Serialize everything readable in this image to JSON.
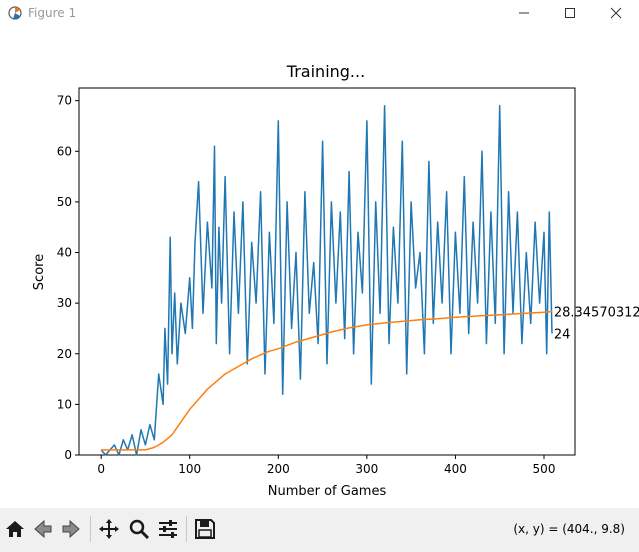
{
  "window": {
    "title": "Figure 1"
  },
  "toolbar": {
    "coords_text": "(x, y) = (404., 9.8)"
  },
  "chart_data": {
    "type": "line",
    "title": "Training...",
    "xlabel": "Number of Games",
    "ylabel": "Score",
    "xlim": [
      -25,
      535
    ],
    "ylim": [
      0,
      72.5
    ],
    "xticks": [
      0,
      100,
      200,
      300,
      400,
      500
    ],
    "yticks": [
      0,
      10,
      20,
      30,
      40,
      50,
      60,
      70
    ],
    "grid": false,
    "annotations": [
      {
        "text": "28.34570312",
        "x": 510,
        "y": 28.35
      },
      {
        "text": "24",
        "x": 510,
        "y": 24
      }
    ],
    "series": [
      {
        "color": "#1f77b4",
        "x": [
          0,
          5,
          10,
          15,
          20,
          25,
          30,
          35,
          40,
          45,
          50,
          55,
          60,
          65,
          70,
          72,
          75,
          78,
          80,
          83,
          86,
          90,
          95,
          100,
          103,
          106,
          110,
          115,
          120,
          125,
          128,
          130,
          133,
          136,
          140,
          145,
          150,
          155,
          160,
          165,
          170,
          175,
          180,
          185,
          190,
          195,
          200,
          205,
          210,
          215,
          220,
          225,
          230,
          235,
          240,
          245,
          250,
          255,
          260,
          265,
          270,
          275,
          280,
          285,
          290,
          295,
          300,
          305,
          310,
          315,
          320,
          325,
          330,
          335,
          340,
          345,
          350,
          355,
          360,
          365,
          370,
          375,
          380,
          385,
          390,
          395,
          400,
          405,
          410,
          415,
          420,
          425,
          430,
          435,
          440,
          445,
          450,
          455,
          460,
          465,
          470,
          475,
          480,
          485,
          490,
          495,
          500,
          503,
          506,
          509
        ],
        "y": [
          1,
          0,
          1,
          2,
          0,
          3,
          1,
          4,
          0,
          5,
          2,
          6,
          3,
          16,
          10,
          25,
          14,
          43,
          20,
          32,
          18,
          30,
          24,
          35,
          25,
          42,
          54,
          28,
          46,
          33,
          61,
          22,
          45,
          30,
          55,
          20,
          48,
          28,
          50,
          18,
          42,
          30,
          52,
          16,
          44,
          26,
          66,
          12,
          50,
          25,
          40,
          15,
          52,
          28,
          38,
          22,
          62,
          18,
          50,
          30,
          48,
          23,
          56,
          20,
          44,
          32,
          66,
          14,
          50,
          28,
          69,
          22,
          45,
          30,
          62,
          16,
          50,
          33,
          40,
          20,
          58,
          26,
          46,
          30,
          52,
          20,
          44,
          28,
          55,
          24,
          46,
          30,
          60,
          22,
          48,
          26,
          69,
          20,
          52,
          28,
          48,
          22,
          40,
          26,
          46,
          30,
          44,
          20,
          48,
          24
        ]
      },
      {
        "color": "#ff7f0e",
        "x": [
          0,
          30,
          50,
          60,
          70,
          80,
          90,
          100,
          110,
          120,
          130,
          140,
          150,
          160,
          170,
          180,
          190,
          200,
          220,
          240,
          260,
          280,
          300,
          320,
          340,
          360,
          380,
          400,
          420,
          440,
          460,
          480,
          500,
          509
        ],
        "y": [
          1,
          1,
          1,
          1.5,
          2.5,
          4,
          6.5,
          9,
          11,
          13,
          14.5,
          16,
          17,
          18,
          19,
          19.8,
          20.5,
          21,
          22.3,
          23.3,
          24.3,
          25.1,
          25.7,
          26.1,
          26.4,
          26.7,
          26.9,
          27.2,
          27.4,
          27.6,
          27.8,
          28.0,
          28.2,
          28.35
        ]
      }
    ]
  }
}
